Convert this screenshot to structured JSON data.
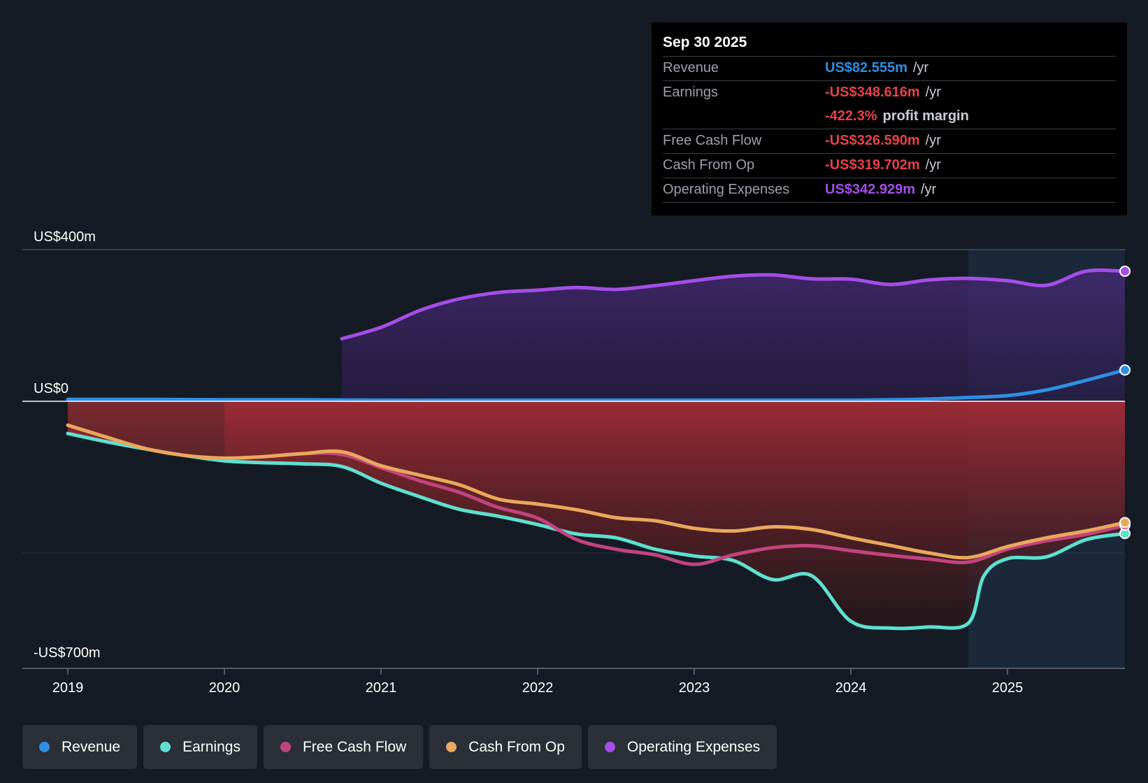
{
  "chart_data": {
    "type": "area",
    "x_ticks": [
      "2019",
      "2020",
      "2021",
      "2022",
      "2023",
      "2024",
      "2025"
    ],
    "y_labels": [
      "US$400m",
      "US$0",
      "-US$700m"
    ],
    "ylim": [
      -700,
      400
    ],
    "xlim": [
      2019.0,
      2025.75
    ],
    "forecast_start": 2024.75,
    "series": [
      {
        "name": "Revenue",
        "color": "#2e8fe4",
        "points": [
          [
            2019.0,
            5
          ],
          [
            2019.5,
            5
          ],
          [
            2020.0,
            4
          ],
          [
            2020.5,
            4
          ],
          [
            2021.0,
            3
          ],
          [
            2021.5,
            3
          ],
          [
            2022.0,
            3
          ],
          [
            2022.5,
            3
          ],
          [
            2023.0,
            3
          ],
          [
            2023.5,
            3
          ],
          [
            2024.0,
            3
          ],
          [
            2024.25,
            4
          ],
          [
            2024.5,
            6
          ],
          [
            2024.75,
            10
          ],
          [
            2025.0,
            15
          ],
          [
            2025.25,
            30
          ],
          [
            2025.5,
            55
          ],
          [
            2025.75,
            82.555
          ]
        ]
      },
      {
        "name": "Earnings",
        "color": "#5ee0d0",
        "points": [
          [
            2019.0,
            -85
          ],
          [
            2019.25,
            -107
          ],
          [
            2019.5,
            -126
          ],
          [
            2019.75,
            -143
          ],
          [
            2020.0,
            -157
          ],
          [
            2020.25,
            -162
          ],
          [
            2020.5,
            -165
          ],
          [
            2020.75,
            -172
          ],
          [
            2021.0,
            -216
          ],
          [
            2021.25,
            -252
          ],
          [
            2021.5,
            -285
          ],
          [
            2021.75,
            -303
          ],
          [
            2022.0,
            -325
          ],
          [
            2022.25,
            -350
          ],
          [
            2022.5,
            -360
          ],
          [
            2022.75,
            -390
          ],
          [
            2023.0,
            -408
          ],
          [
            2023.25,
            -420
          ],
          [
            2023.5,
            -470
          ],
          [
            2023.75,
            -460
          ],
          [
            2024.0,
            -580
          ],
          [
            2024.25,
            -598
          ],
          [
            2024.5,
            -595
          ],
          [
            2024.75,
            -585
          ],
          [
            2024.85,
            -460
          ],
          [
            2025.0,
            -415
          ],
          [
            2025.25,
            -410
          ],
          [
            2025.5,
            -365
          ],
          [
            2025.75,
            -348.616
          ]
        ]
      },
      {
        "name": "Free Cash Flow",
        "color": "#c2447e",
        "points": [
          [
            2019.0,
            -63
          ],
          [
            2019.25,
            -95
          ],
          [
            2019.5,
            -125
          ],
          [
            2019.75,
            -143
          ],
          [
            2020.0,
            -150
          ],
          [
            2020.25,
            -146
          ],
          [
            2020.5,
            -138
          ],
          [
            2020.75,
            -140
          ],
          [
            2021.0,
            -175
          ],
          [
            2021.25,
            -210
          ],
          [
            2021.5,
            -240
          ],
          [
            2021.75,
            -280
          ],
          [
            2022.0,
            -308
          ],
          [
            2022.25,
            -365
          ],
          [
            2022.5,
            -390
          ],
          [
            2022.75,
            -405
          ],
          [
            2023.0,
            -430
          ],
          [
            2023.25,
            -405
          ],
          [
            2023.5,
            -386
          ],
          [
            2023.75,
            -381
          ],
          [
            2024.0,
            -394
          ],
          [
            2024.25,
            -406
          ],
          [
            2024.5,
            -416
          ],
          [
            2024.75,
            -424
          ],
          [
            2025.0,
            -390
          ],
          [
            2025.25,
            -368
          ],
          [
            2025.5,
            -351
          ],
          [
            2025.75,
            -326.59
          ]
        ]
      },
      {
        "name": "Cash From Op",
        "color": "#eaa85c",
        "points": [
          [
            2019.0,
            -63
          ],
          [
            2019.25,
            -95
          ],
          [
            2019.5,
            -125
          ],
          [
            2019.75,
            -143
          ],
          [
            2020.0,
            -150
          ],
          [
            2020.25,
            -146
          ],
          [
            2020.5,
            -138
          ],
          [
            2020.75,
            -133
          ],
          [
            2021.0,
            -170
          ],
          [
            2021.25,
            -195
          ],
          [
            2021.5,
            -220
          ],
          [
            2021.75,
            -258
          ],
          [
            2022.0,
            -271
          ],
          [
            2022.25,
            -286
          ],
          [
            2022.5,
            -307
          ],
          [
            2022.75,
            -315
          ],
          [
            2023.0,
            -335
          ],
          [
            2023.25,
            -342
          ],
          [
            2023.5,
            -331
          ],
          [
            2023.75,
            -338
          ],
          [
            2024.0,
            -360
          ],
          [
            2024.25,
            -380
          ],
          [
            2024.5,
            -400
          ],
          [
            2024.75,
            -412
          ],
          [
            2025.0,
            -383
          ],
          [
            2025.25,
            -360
          ],
          [
            2025.5,
            -342
          ],
          [
            2025.75,
            -319.702
          ]
        ]
      },
      {
        "name": "Operating Expenses",
        "color": "#a54ee8",
        "points": [
          [
            2020.75,
            165
          ],
          [
            2021.0,
            195
          ],
          [
            2021.25,
            240
          ],
          [
            2021.5,
            270
          ],
          [
            2021.75,
            287
          ],
          [
            2022.0,
            293
          ],
          [
            2022.25,
            300
          ],
          [
            2022.5,
            295
          ],
          [
            2022.75,
            305
          ],
          [
            2023.0,
            318
          ],
          [
            2023.25,
            330
          ],
          [
            2023.5,
            333
          ],
          [
            2023.75,
            323
          ],
          [
            2024.0,
            322
          ],
          [
            2024.25,
            308
          ],
          [
            2024.5,
            320
          ],
          [
            2024.75,
            324
          ],
          [
            2025.0,
            318
          ],
          [
            2025.25,
            306
          ],
          [
            2025.5,
            343
          ],
          [
            2025.75,
            342.929
          ]
        ]
      }
    ]
  },
  "tooltip": {
    "date": "Sep 30 2025",
    "rows": [
      {
        "label": "Revenue",
        "value": "US$82.555m",
        "unit": "/yr",
        "color": "#2e8fe4"
      },
      {
        "label": "Earnings",
        "value": "-US$348.616m",
        "unit": "/yr",
        "color": "#e5424b"
      },
      {
        "label": "",
        "value": "-422.3%",
        "unit": "profit margin",
        "color": "#e5424b"
      },
      {
        "label": "Free Cash Flow",
        "value": "-US$326.590m",
        "unit": "/yr",
        "color": "#e5424b"
      },
      {
        "label": "Cash From Op",
        "value": "-US$319.702m",
        "unit": "/yr",
        "color": "#e5424b"
      },
      {
        "label": "Operating Expenses",
        "value": "US$342.929m",
        "unit": "/yr",
        "color": "#a54ee8"
      }
    ]
  },
  "legend": [
    {
      "label": "Revenue",
      "color": "#2e8fe4"
    },
    {
      "label": "Earnings",
      "color": "#5ee0d0"
    },
    {
      "label": "Free Cash Flow",
      "color": "#c2447e"
    },
    {
      "label": "Cash From Op",
      "color": "#eaa85c"
    },
    {
      "label": "Operating Expenses",
      "color": "#a54ee8"
    }
  ]
}
